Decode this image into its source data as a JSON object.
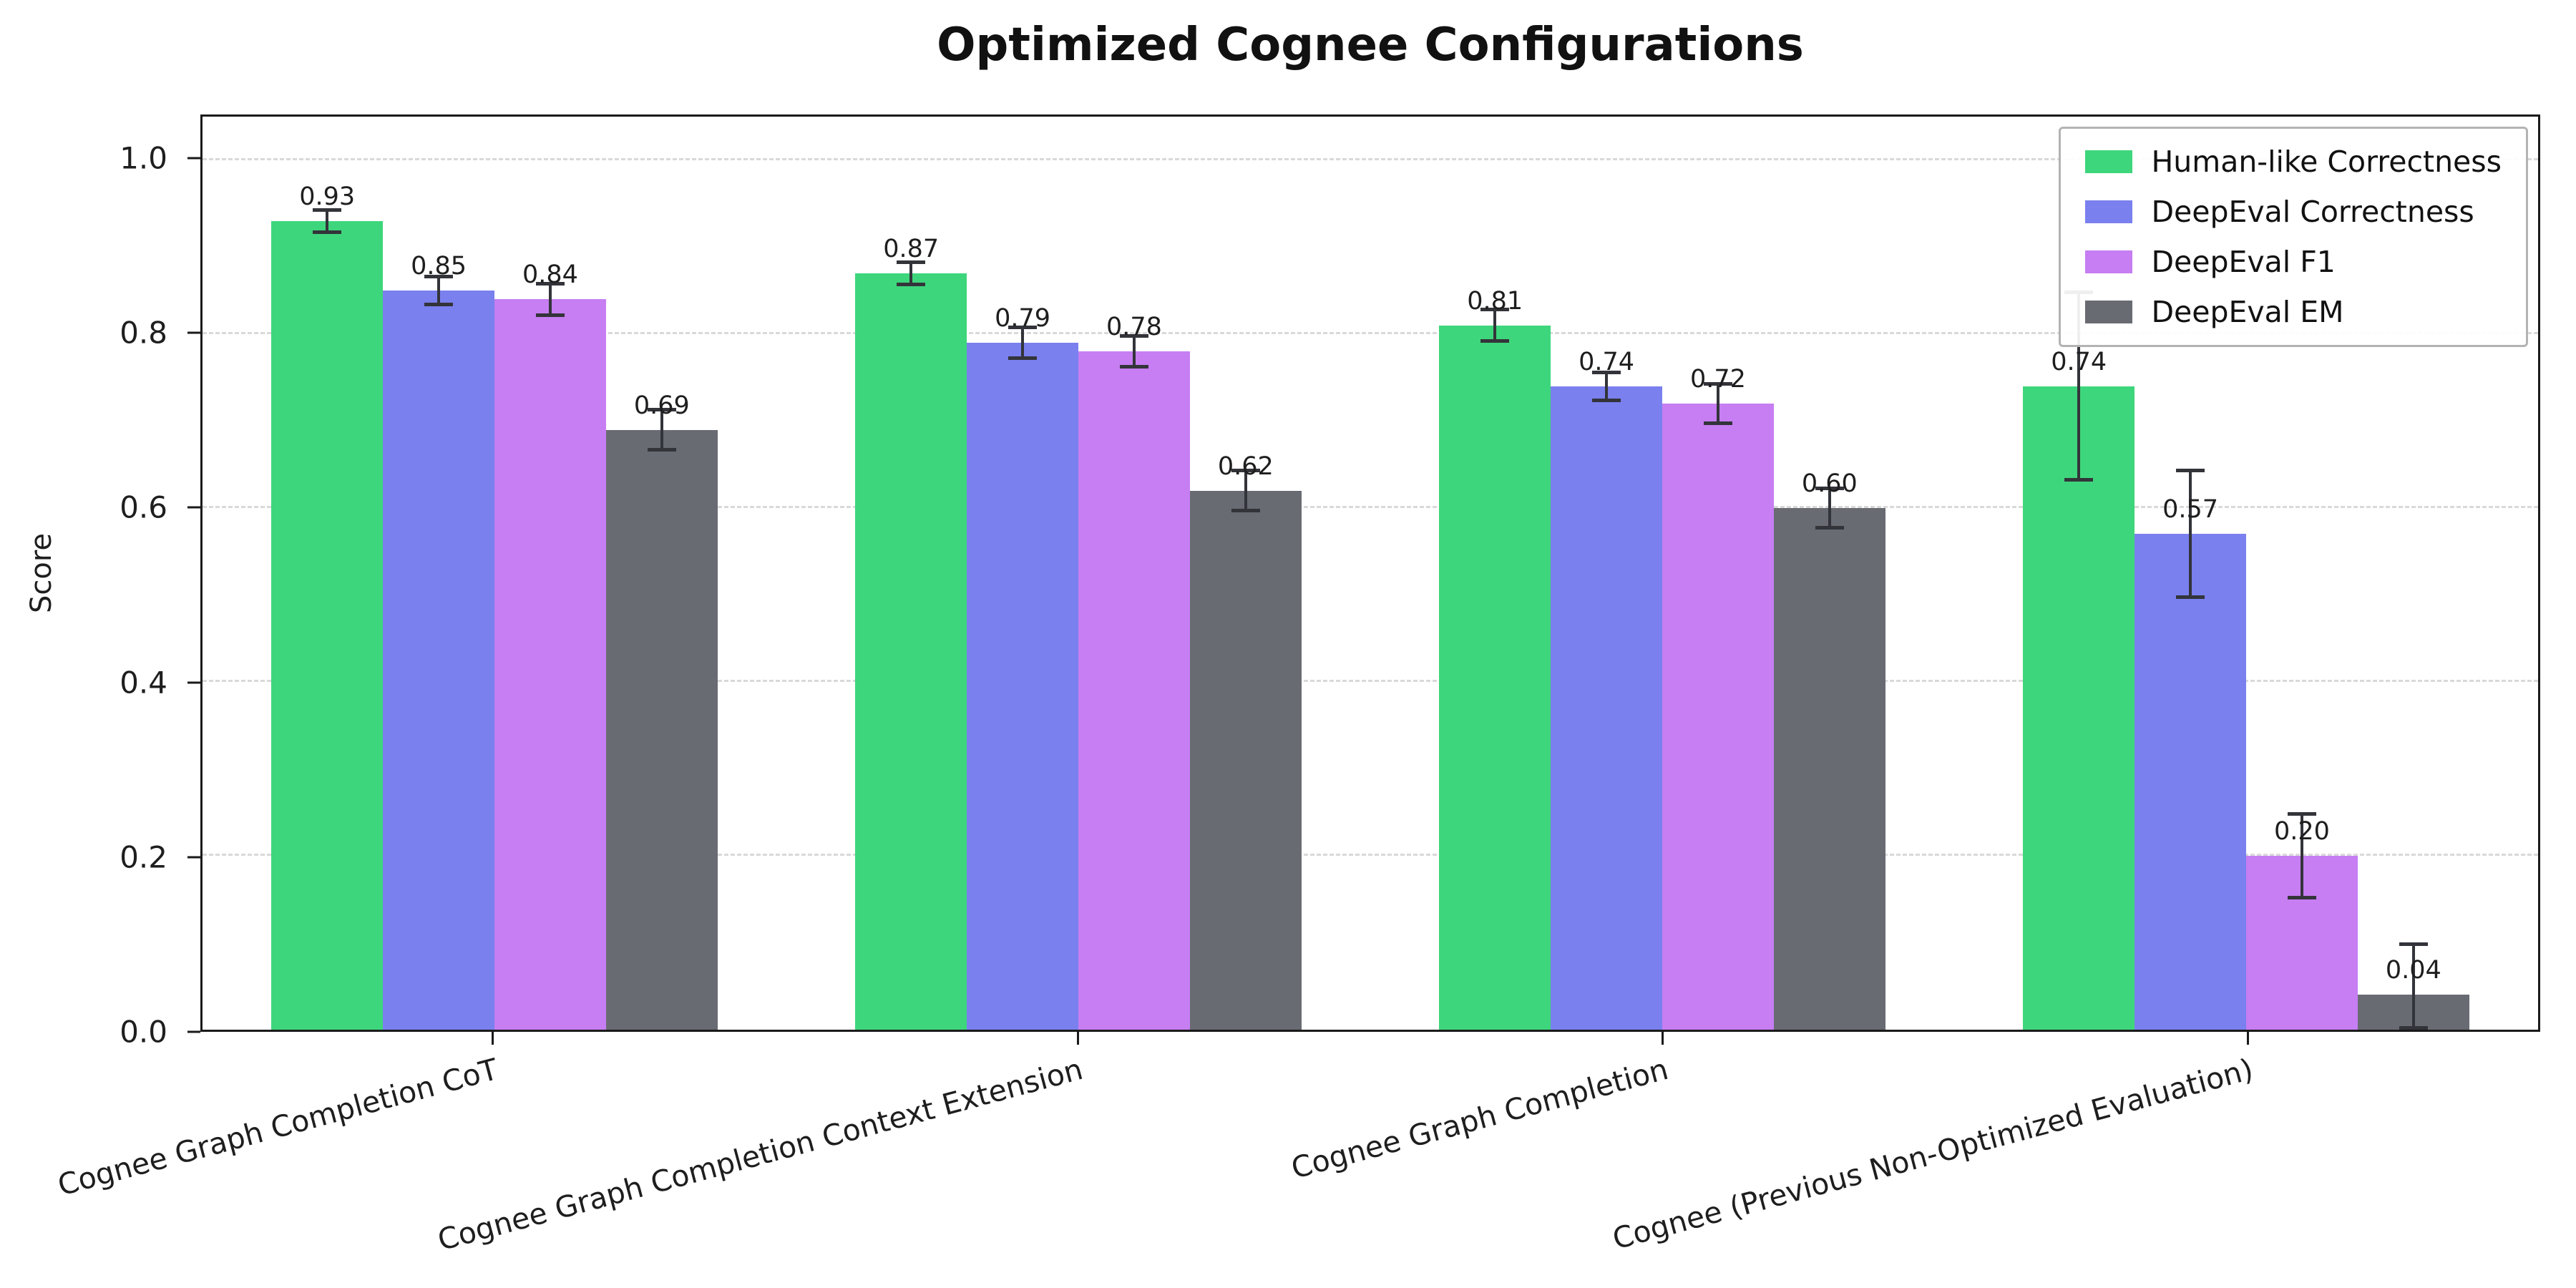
{
  "chart_data": {
    "type": "bar",
    "title": "Optimized Cognee Configurations",
    "xlabel": "",
    "ylabel": "Score",
    "ylim": [
      0,
      1.05
    ],
    "yticks": [
      0.0,
      0.2,
      0.4,
      0.6,
      0.8,
      1.0
    ],
    "grid": "horizontal-dashed",
    "legend_position": "upper right",
    "categories": [
      "Cognee Graph Completion CoT",
      "Cognee Graph Completion Context Extension",
      "Cognee Graph Completion",
      "Cognee (Previous Non-Optimized Evaluation)"
    ],
    "series": [
      {
        "name": "Human-like Correctness",
        "color": "#3ed67c",
        "values": [
          0.93,
          0.87,
          0.81,
          0.74
        ],
        "errors": [
          0.015,
          0.015,
          0.02,
          0.11
        ]
      },
      {
        "name": "DeepEval Correctness",
        "color": "#7a80ee",
        "values": [
          0.85,
          0.79,
          0.74,
          0.57
        ],
        "errors": [
          0.018,
          0.02,
          0.018,
          0.075
        ]
      },
      {
        "name": "DeepEval F1",
        "color": "#c67ef2",
        "values": [
          0.84,
          0.78,
          0.72,
          0.2
        ],
        "errors": [
          0.02,
          0.02,
          0.025,
          0.05
        ]
      },
      {
        "name": "DeepEval EM",
        "color": "#696b73",
        "values": [
          0.69,
          0.62,
          0.6,
          0.04
        ],
        "errors": [
          0.025,
          0.025,
          0.025,
          0.06
        ]
      }
    ],
    "colors": {
      "axis": "#1a1a1a",
      "grid": "#d9d9d9",
      "error_bar": "#33343a",
      "background": "#ffffff"
    }
  }
}
